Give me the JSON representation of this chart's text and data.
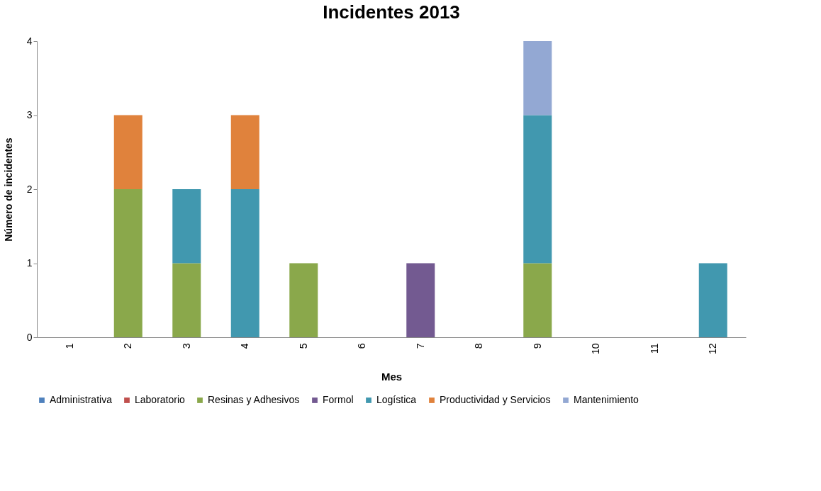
{
  "chart_data": {
    "type": "bar",
    "title": "Incidentes 2013",
    "xlabel": "Mes",
    "ylabel": "Número de incidentes",
    "categories": [
      "1",
      "2",
      "3",
      "4",
      "5",
      "6",
      "7",
      "8",
      "9",
      "10",
      "11",
      "12"
    ],
    "stacked": true,
    "ylim": [
      0,
      4
    ],
    "yticks": [
      0,
      1,
      2,
      3,
      4
    ],
    "grid": false,
    "legend": "bottom",
    "series": [
      {
        "name": "Administrativa",
        "color": "#4f81bd",
        "values": [
          0,
          0,
          0,
          0,
          0,
          0,
          0,
          0,
          0,
          0,
          0,
          0
        ]
      },
      {
        "name": "Laboratorio",
        "color": "#c0504d",
        "values": [
          0,
          0,
          0,
          0,
          0,
          0,
          0,
          0,
          0,
          0,
          0,
          0
        ]
      },
      {
        "name": "Resinas y Adhesivos",
        "color": "#8aa84b",
        "values": [
          0,
          2,
          1,
          0,
          1,
          0,
          0,
          0,
          1,
          0,
          0,
          0
        ]
      },
      {
        "name": "Formol",
        "color": "#735a91",
        "values": [
          0,
          0,
          0,
          0,
          0,
          0,
          1,
          0,
          0,
          0,
          0,
          0
        ]
      },
      {
        "name": "Logística",
        "color": "#4198af",
        "values": [
          0,
          0,
          1,
          2,
          0,
          0,
          0,
          0,
          2,
          0,
          0,
          1
        ]
      },
      {
        "name": "Productividad y Servicios",
        "color": "#e0823c",
        "values": [
          0,
          1,
          0,
          1,
          0,
          0,
          0,
          0,
          0,
          0,
          0,
          0
        ]
      },
      {
        "name": "Mantenimiento",
        "color": "#93a8d3",
        "values": [
          0,
          0,
          0,
          0,
          0,
          0,
          0,
          0,
          1,
          0,
          0,
          0
        ]
      }
    ]
  }
}
